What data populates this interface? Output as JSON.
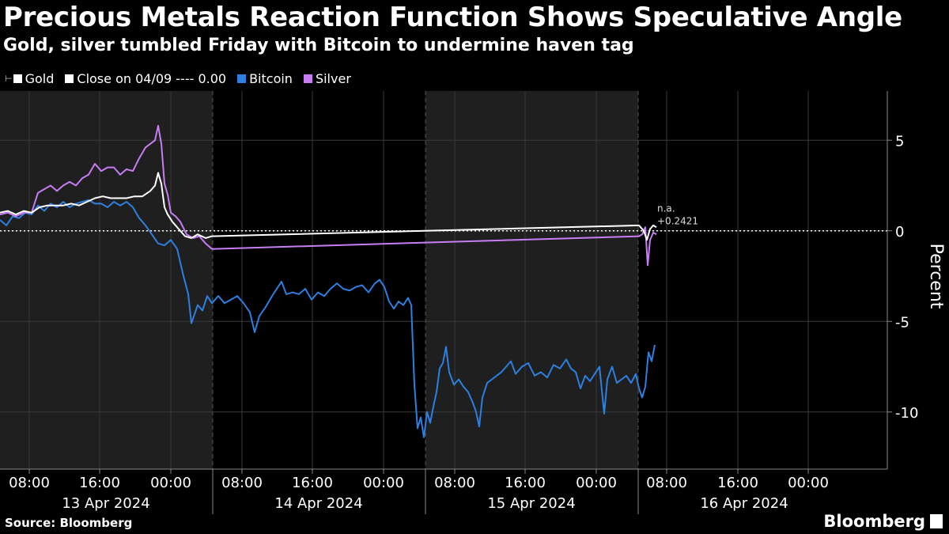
{
  "header": {
    "title": "Precious Metals Reaction Function Shows Speculative Angle",
    "subtitle": "Gold, silver tumbled Friday with Bitcoin to undermine haven tag"
  },
  "legend": [
    {
      "label": "Gold",
      "color": "#ffffff"
    },
    {
      "label": "Close on 04/09 ---- 0.00",
      "color": "#ffffff"
    },
    {
      "label": "Bitcoin",
      "color": "#2d7fe0"
    },
    {
      "label": "Silver",
      "color": "#c77df3"
    }
  ],
  "footer": {
    "source": "Source: Bloomberg",
    "brand": "Bloomberg"
  },
  "chart_data": {
    "type": "line",
    "ylabel": "Percent",
    "ylim": [
      -12.5,
      7.5
    ],
    "y_ticks": [
      5,
      0,
      -5,
      -10
    ],
    "y_tick_labels": [
      "5",
      "0",
      "-5",
      "-10"
    ],
    "x_tick_labels": [
      "08:00",
      "16:00",
      "00:00",
      "08:00",
      "16:00",
      "00:00",
      "08:00",
      "16:00",
      "00:00",
      "08:00",
      "16:00",
      "00:00"
    ],
    "date_labels": [
      "13 Apr 2024",
      "14 Apr 2024",
      "15 Apr 2024",
      "16 Apr 2024"
    ],
    "reference_line": {
      "label": "Close on 04/09",
      "value": 0.0
    },
    "annotation": {
      "line1": "n.a.",
      "line2": "+0.2421"
    },
    "series": [
      {
        "name": "Bitcoin",
        "color": "#2d7fe0",
        "points": [
          [
            0,
            0.6
          ],
          [
            8,
            0.3
          ],
          [
            16,
            0.8
          ],
          [
            24,
            0.7
          ],
          [
            32,
            1.0
          ],
          [
            40,
            0.9
          ],
          [
            48,
            1.4
          ],
          [
            56,
            1.1
          ],
          [
            64,
            1.5
          ],
          [
            72,
            1.3
          ],
          [
            80,
            1.6
          ],
          [
            88,
            1.3
          ],
          [
            96,
            1.5
          ],
          [
            104,
            1.6
          ],
          [
            112,
            1.7
          ],
          [
            120,
            1.5
          ],
          [
            128,
            1.5
          ],
          [
            136,
            1.3
          ],
          [
            144,
            1.6
          ],
          [
            152,
            1.4
          ],
          [
            160,
            1.6
          ],
          [
            168,
            1.3
          ],
          [
            176,
            0.7
          ],
          [
            184,
            0.3
          ],
          [
            192,
            -0.2
          ],
          [
            200,
            -0.7
          ],
          [
            208,
            -0.8
          ],
          [
            216,
            -0.5
          ],
          [
            224,
            -1.0
          ],
          [
            232,
            -2.5
          ],
          [
            238,
            -3.5
          ],
          [
            242,
            -5.1
          ],
          [
            246,
            -4.6
          ],
          [
            250,
            -4.1
          ],
          [
            256,
            -4.4
          ],
          [
            262,
            -3.6
          ],
          [
            268,
            -4.0
          ],
          [
            276,
            -3.6
          ],
          [
            284,
            -4.0
          ],
          [
            292,
            -3.8
          ],
          [
            300,
            -3.6
          ],
          [
            308,
            -4.0
          ],
          [
            316,
            -4.5
          ],
          [
            322,
            -5.6
          ],
          [
            328,
            -4.7
          ],
          [
            336,
            -4.2
          ],
          [
            344,
            -3.6
          ],
          [
            350,
            -3.2
          ],
          [
            356,
            -2.8
          ],
          [
            362,
            -3.5
          ],
          [
            370,
            -3.4
          ],
          [
            378,
            -3.5
          ],
          [
            386,
            -3.2
          ],
          [
            394,
            -3.8
          ],
          [
            402,
            -3.4
          ],
          [
            410,
            -3.6
          ],
          [
            418,
            -3.2
          ],
          [
            426,
            -2.9
          ],
          [
            434,
            -3.2
          ],
          [
            442,
            -3.3
          ],
          [
            450,
            -3.1
          ],
          [
            458,
            -3.0
          ],
          [
            466,
            -3.4
          ],
          [
            474,
            -2.9
          ],
          [
            480,
            -2.7
          ],
          [
            486,
            -3.1
          ],
          [
            492,
            -3.9
          ],
          [
            498,
            -4.3
          ],
          [
            504,
            -3.9
          ],
          [
            510,
            -4.1
          ],
          [
            516,
            -3.7
          ],
          [
            520,
            -4.1
          ],
          [
            524,
            -8.5
          ],
          [
            528,
            -10.9
          ],
          [
            532,
            -10.3
          ],
          [
            536,
            -11.4
          ],
          [
            540,
            -10.0
          ],
          [
            544,
            -10.6
          ],
          [
            548,
            -9.7
          ],
          [
            552,
            -8.9
          ],
          [
            556,
            -7.6
          ],
          [
            560,
            -7.3
          ],
          [
            564,
            -6.4
          ],
          [
            568,
            -7.8
          ],
          [
            574,
            -8.5
          ],
          [
            580,
            -8.2
          ],
          [
            586,
            -8.6
          ],
          [
            592,
            -8.9
          ],
          [
            598,
            -9.5
          ],
          [
            602,
            -10.0
          ],
          [
            606,
            -10.8
          ],
          [
            610,
            -9.2
          ],
          [
            616,
            -8.4
          ],
          [
            622,
            -8.2
          ],
          [
            628,
            -8.0
          ],
          [
            634,
            -7.8
          ],
          [
            640,
            -7.5
          ],
          [
            646,
            -7.2
          ],
          [
            652,
            -7.9
          ],
          [
            660,
            -7.5
          ],
          [
            668,
            -7.3
          ],
          [
            676,
            -8.0
          ],
          [
            684,
            -7.8
          ],
          [
            692,
            -8.1
          ],
          [
            700,
            -7.4
          ],
          [
            708,
            -7.6
          ],
          [
            716,
            -7.1
          ],
          [
            722,
            -7.6
          ],
          [
            728,
            -7.8
          ],
          [
            734,
            -8.7
          ],
          [
            740,
            -8.0
          ],
          [
            746,
            -8.3
          ],
          [
            752,
            -7.9
          ],
          [
            758,
            -7.5
          ],
          [
            764,
            -10.1
          ],
          [
            768,
            -8.2
          ],
          [
            774,
            -7.5
          ],
          [
            780,
            -8.4
          ],
          [
            786,
            -8.2
          ],
          [
            792,
            -8.0
          ],
          [
            798,
            -8.4
          ],
          [
            804,
            -7.9
          ],
          [
            808,
            -8.7
          ],
          [
            812,
            -9.2
          ],
          [
            816,
            -8.6
          ],
          [
            820,
            -6.7
          ],
          [
            824,
            -7.2
          ],
          [
            828,
            -6.3
          ]
        ]
      },
      {
        "name": "Gold",
        "color": "#ffffff",
        "points": [
          [
            0,
            1.0
          ],
          [
            10,
            1.1
          ],
          [
            20,
            0.9
          ],
          [
            30,
            1.1
          ],
          [
            40,
            1.0
          ],
          [
            50,
            1.3
          ],
          [
            60,
            1.4
          ],
          [
            70,
            1.4
          ],
          [
            80,
            1.4
          ],
          [
            90,
            1.5
          ],
          [
            100,
            1.4
          ],
          [
            110,
            1.6
          ],
          [
            120,
            1.8
          ],
          [
            130,
            1.9
          ],
          [
            140,
            1.8
          ],
          [
            150,
            1.8
          ],
          [
            160,
            1.8
          ],
          [
            170,
            1.9
          ],
          [
            180,
            1.9
          ],
          [
            190,
            2.2
          ],
          [
            196,
            2.5
          ],
          [
            200,
            3.2
          ],
          [
            204,
            2.6
          ],
          [
            208,
            1.3
          ],
          [
            212,
            0.9
          ],
          [
            218,
            0.5
          ],
          [
            226,
            0.1
          ],
          [
            234,
            -0.3
          ],
          [
            242,
            -0.4
          ],
          [
            250,
            -0.2
          ],
          [
            260,
            -0.4
          ],
          [
            268,
            -0.3
          ],
          [
            808,
            0.3
          ],
          [
            814,
            0.0
          ],
          [
            818,
            -0.5
          ],
          [
            822,
            0.1
          ],
          [
            826,
            0.3
          ],
          [
            830,
            0.2
          ]
        ]
      },
      {
        "name": "Silver",
        "color": "#c77df3",
        "points": [
          [
            0,
            0.9
          ],
          [
            10,
            1.0
          ],
          [
            20,
            0.8
          ],
          [
            30,
            1.0
          ],
          [
            40,
            1.0
          ],
          [
            48,
            2.1
          ],
          [
            56,
            2.3
          ],
          [
            64,
            2.5
          ],
          [
            72,
            2.2
          ],
          [
            80,
            2.5
          ],
          [
            88,
            2.7
          ],
          [
            96,
            2.5
          ],
          [
            104,
            2.9
          ],
          [
            112,
            3.1
          ],
          [
            120,
            3.7
          ],
          [
            128,
            3.3
          ],
          [
            136,
            3.5
          ],
          [
            144,
            3.5
          ],
          [
            152,
            3.1
          ],
          [
            160,
            3.4
          ],
          [
            168,
            3.3
          ],
          [
            176,
            4.0
          ],
          [
            184,
            4.6
          ],
          [
            190,
            4.8
          ],
          [
            196,
            5.0
          ],
          [
            200,
            5.8
          ],
          [
            204,
            4.8
          ],
          [
            208,
            2.6
          ],
          [
            212,
            2.0
          ],
          [
            216,
            1.0
          ],
          [
            222,
            0.8
          ],
          [
            228,
            0.5
          ],
          [
            236,
            -0.2
          ],
          [
            244,
            -0.4
          ],
          [
            252,
            -0.3
          ],
          [
            260,
            -0.7
          ],
          [
            268,
            -1.0
          ],
          [
            808,
            -0.3
          ],
          [
            812,
            -0.2
          ],
          [
            816,
            0.2
          ],
          [
            819,
            -1.9
          ],
          [
            822,
            -0.5
          ],
          [
            826,
            -0.1
          ],
          [
            830,
            -0.2
          ]
        ]
      }
    ]
  }
}
